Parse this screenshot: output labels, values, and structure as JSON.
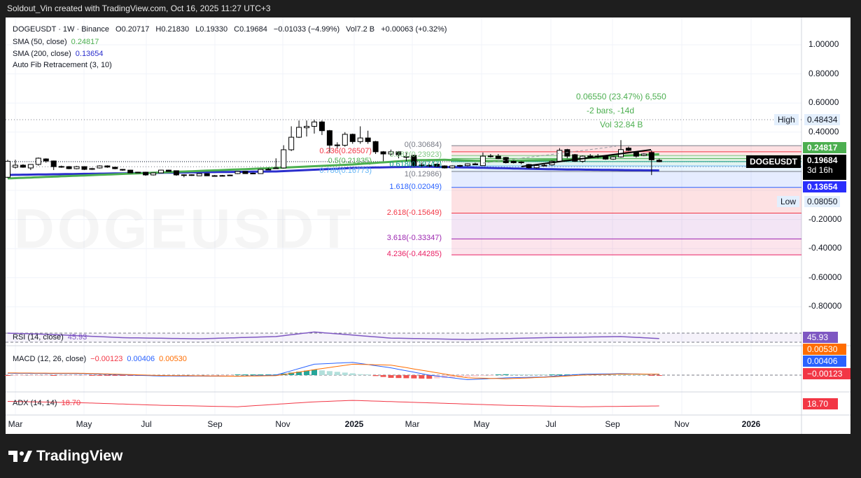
{
  "topbar": {
    "text": "Soldout_Vin created with TradingView.com, Oct 16, 2025 11:27 UTC+3"
  },
  "legend": {
    "symbol_line": "DOGEUSDT · 1W · Binance",
    "open": "O0.20717",
    "high": "H0.21830",
    "low": "L0.19330",
    "close": "C0.19684",
    "change": "−0.01033 (−4.99%)",
    "volume": "Vol7.2 B",
    "vol_change": "+0.00063 (+0.32%)",
    "sma50_label": "SMA (50, close)",
    "sma50_value": "0.24817",
    "sma200_label": "SMA (200, close)",
    "sma200_value": "0.13654",
    "fib_label": "Auto Fib Retracement (3, 10)"
  },
  "watermark": "DOGEUSDT",
  "measure": {
    "line1": "0.06550 (23.47%) 6,550",
    "line2": "-2 bars, -14d",
    "line3": "Vol 32.84 B"
  },
  "price_axis": {
    "ticks": [
      "1.00000",
      "0.80000",
      "0.60000",
      "0.40000",
      "-0.20000",
      "-0.40000",
      "-0.60000",
      "-0.80000"
    ],
    "high_label": "High",
    "high_value": "0.48434",
    "low_label": "Low",
    "low_value": "0.08050",
    "sma50_tag": "0.24817",
    "sma200_tag": "0.13654",
    "symbol_tag": "DOGEUSDT",
    "last_price": "0.19684",
    "countdown": "3d 16h"
  },
  "time_axis": [
    "Mar",
    "May",
    "Jul",
    "Sep",
    "Nov",
    "2025",
    "Mar",
    "May",
    "Jul",
    "Sep",
    "Nov",
    "2026"
  ],
  "fib_levels": [
    {
      "label": "0(0.30684)",
      "level": 0,
      "price": 0.30684,
      "color": "#787b86"
    },
    {
      "label": "0.236(0.26507)",
      "level": 0.236,
      "price": 0.26507,
      "color": "#f23645"
    },
    {
      "label": "0.382(0.23923)",
      "level": 0.382,
      "price": 0.23923,
      "color": "#81c784"
    },
    {
      "label": "0.5(0.21835)",
      "level": 0.5,
      "price": 0.21835,
      "color": "#4caf50"
    },
    {
      "label": "0.618(0.19747)",
      "level": 0.618,
      "price": 0.19747,
      "color": "#089981"
    },
    {
      "label": "0.786(0.16773)",
      "level": 0.786,
      "price": 0.16773,
      "color": "#64b5f6"
    },
    {
      "label": "1(0.12986)",
      "level": 1,
      "price": 0.12986,
      "color": "#787b86"
    },
    {
      "label": "1.618(0.02049)",
      "level": 1.618,
      "price": 0.02049,
      "color": "#2962ff"
    },
    {
      "label": "2.618(-0.15649)",
      "level": 2.618,
      "price": -0.15649,
      "color": "#f23645"
    },
    {
      "label": "3.618(-0.33347)",
      "level": 3.618,
      "price": -0.33347,
      "color": "#9c27b0"
    },
    {
      "label": "4.236(-0.44285)",
      "level": 4.236,
      "price": -0.44285,
      "color": "#e91e63"
    }
  ],
  "indicators": {
    "rsi_label": "RSI (14, close)",
    "rsi_value": "45.93",
    "macd_label": "MACD (12, 26, close)",
    "macd_hist": "−0.00123",
    "macd_line": "0.00406",
    "macd_signal": "0.00530",
    "adx_label": "ADX (14, 14)",
    "adx_value": "18.70"
  },
  "colors": {
    "sma50": "#4caf50",
    "sma200": "#2a2ecd",
    "rsi": "#7e57c2",
    "macd": "#2962ff",
    "signal": "#ff6d00",
    "adx": "#f23645",
    "hist_up": "#26a69a",
    "hist_down": "#ef5350"
  },
  "brand": "TradingView",
  "chart_data": {
    "type": "candlestick",
    "symbol": "DOGEUSDT",
    "interval": "1W",
    "ylim": [
      -0.9,
      1.05
    ],
    "ohlc": [
      [
        0.09,
        0.21,
        0.085,
        0.2
      ],
      [
        0.159,
        0.21,
        0.15,
        0.173
      ],
      [
        0.173,
        0.18,
        0.155,
        0.159
      ],
      [
        0.154,
        0.18,
        0.14,
        0.178
      ],
      [
        0.178,
        0.226,
        0.17,
        0.221
      ],
      [
        0.216,
        0.22,
        0.19,
        0.202
      ],
      [
        0.202,
        0.205,
        0.14,
        0.163
      ],
      [
        0.163,
        0.17,
        0.155,
        0.164
      ],
      [
        0.163,
        0.167,
        0.145,
        0.149
      ],
      [
        0.149,
        0.168,
        0.145,
        0.163
      ],
      [
        0.163,
        0.166,
        0.14,
        0.144
      ],
      [
        0.144,
        0.155,
        0.14,
        0.15
      ],
      [
        0.154,
        0.172,
        0.15,
        0.168
      ],
      [
        0.168,
        0.172,
        0.155,
        0.16
      ],
      [
        0.159,
        0.162,
        0.145,
        0.149
      ],
      [
        0.144,
        0.147,
        0.135,
        0.139
      ],
      [
        0.139,
        0.141,
        0.118,
        0.12
      ],
      [
        0.125,
        0.128,
        0.12,
        0.125
      ],
      [
        0.125,
        0.128,
        0.1,
        0.106
      ],
      [
        0.106,
        0.123,
        0.102,
        0.12
      ],
      [
        0.12,
        0.142,
        0.118,
        0.139
      ],
      [
        0.139,
        0.142,
        0.128,
        0.13
      ],
      [
        0.135,
        0.137,
        0.1,
        0.106
      ],
      [
        0.106,
        0.11,
        0.09,
        0.107
      ],
      [
        0.107,
        0.11,
        0.1,
        0.106
      ],
      [
        0.1,
        0.117,
        0.098,
        0.115
      ],
      [
        0.115,
        0.117,
        0.098,
        0.1
      ],
      [
        0.1,
        0.105,
        0.095,
        0.101
      ],
      [
        0.101,
        0.106,
        0.098,
        0.102
      ],
      [
        0.102,
        0.108,
        0.1,
        0.105
      ],
      [
        0.115,
        0.132,
        0.112,
        0.13
      ],
      [
        0.13,
        0.132,
        0.113,
        0.115
      ],
      [
        0.117,
        0.122,
        0.112,
        0.118
      ],
      [
        0.115,
        0.146,
        0.113,
        0.144
      ],
      [
        0.144,
        0.155,
        0.14,
        0.145
      ],
      [
        0.15,
        0.22,
        0.148,
        0.154
      ],
      [
        0.154,
        0.31,
        0.15,
        0.279
      ],
      [
        0.279,
        0.44,
        0.27,
        0.365
      ],
      [
        0.365,
        0.48,
        0.36,
        0.433
      ],
      [
        0.43,
        0.48,
        0.37,
        0.44
      ],
      [
        0.44,
        0.485,
        0.39,
        0.47
      ],
      [
        0.47,
        0.48,
        0.38,
        0.41
      ],
      [
        0.41,
        0.415,
        0.26,
        0.31
      ],
      [
        0.31,
        0.33,
        0.29,
        0.312
      ],
      [
        0.31,
        0.4,
        0.3,
        0.385
      ],
      [
        0.385,
        0.39,
        0.32,
        0.335
      ],
      [
        0.335,
        0.44,
        0.32,
        0.36
      ],
      [
        0.36,
        0.41,
        0.32,
        0.335
      ],
      [
        0.335,
        0.34,
        0.25,
        0.265
      ],
      [
        0.265,
        0.27,
        0.2,
        0.25
      ],
      [
        0.25,
        0.28,
        0.24,
        0.265
      ],
      [
        0.265,
        0.27,
        0.22,
        0.245
      ],
      [
        0.23,
        0.26,
        0.2,
        0.232
      ],
      [
        0.24,
        0.245,
        0.16,
        0.17
      ],
      [
        0.173,
        0.19,
        0.16,
        0.174
      ],
      [
        0.172,
        0.18,
        0.16,
        0.171
      ],
      [
        0.18,
        0.185,
        0.16,
        0.165
      ],
      [
        0.168,
        0.172,
        0.15,
        0.154
      ],
      [
        0.155,
        0.172,
        0.15,
        0.168
      ],
      [
        0.168,
        0.175,
        0.16,
        0.171
      ],
      [
        0.17,
        0.185,
        0.165,
        0.182
      ],
      [
        0.182,
        0.19,
        0.175,
        0.176
      ],
      [
        0.17,
        0.26,
        0.168,
        0.235
      ],
      [
        0.235,
        0.25,
        0.225,
        0.236
      ],
      [
        0.235,
        0.25,
        0.215,
        0.218
      ],
      [
        0.226,
        0.23,
        0.185,
        0.19
      ],
      [
        0.2,
        0.205,
        0.185,
        0.19
      ],
      [
        0.195,
        0.2,
        0.18,
        0.19
      ],
      [
        0.178,
        0.182,
        0.15,
        0.155
      ],
      [
        0.155,
        0.175,
        0.15,
        0.17
      ],
      [
        0.17,
        0.18,
        0.165,
        0.172
      ],
      [
        0.175,
        0.205,
        0.17,
        0.2
      ],
      [
        0.2,
        0.29,
        0.195,
        0.275
      ],
      [
        0.28,
        0.285,
        0.22,
        0.235
      ],
      [
        0.245,
        0.25,
        0.195,
        0.2
      ],
      [
        0.2,
        0.24,
        0.19,
        0.235
      ],
      [
        0.235,
        0.25,
        0.22,
        0.236
      ],
      [
        0.235,
        0.25,
        0.22,
        0.234
      ],
      [
        0.235,
        0.24,
        0.21,
        0.215
      ],
      [
        0.215,
        0.235,
        0.21,
        0.23
      ],
      [
        0.23,
        0.345,
        0.225,
        0.28
      ],
      [
        0.29,
        0.3,
        0.27,
        0.275
      ],
      [
        0.26,
        0.265,
        0.225,
        0.235
      ],
      [
        0.24,
        0.255,
        0.235,
        0.25
      ],
      [
        0.26,
        0.275,
        0.105,
        0.21
      ],
      [
        0.20717,
        0.2183,
        0.1933,
        0.19684
      ]
    ],
    "sma50": [
      [
        0,
        0.082
      ],
      [
        35,
        0.154
      ],
      [
        45,
        0.178
      ],
      [
        53,
        0.207
      ],
      [
        57,
        0.21
      ],
      [
        63,
        0.2
      ],
      [
        72,
        0.21
      ],
      [
        81,
        0.24
      ],
      [
        85,
        0.24817
      ]
    ],
    "sma200": [
      [
        0,
        0.106
      ],
      [
        26,
        0.125
      ],
      [
        35,
        0.13
      ],
      [
        45,
        0.154
      ],
      [
        54,
        0.163
      ],
      [
        63,
        0.154
      ],
      [
        72,
        0.144
      ],
      [
        85,
        0.13654
      ]
    ],
    "rsi": [
      [
        0,
        70
      ],
      [
        5,
        65
      ],
      [
        15,
        50
      ],
      [
        25,
        45
      ],
      [
        35,
        55
      ],
      [
        40,
        75
      ],
      [
        50,
        48
      ],
      [
        60,
        42
      ],
      [
        70,
        50
      ],
      [
        80,
        55
      ],
      [
        85,
        45.93
      ]
    ],
    "macd": [
      [
        0,
        0.01
      ],
      [
        10,
        0.008
      ],
      [
        20,
        -0.005
      ],
      [
        30,
        -0.006
      ],
      [
        35,
        0.0
      ],
      [
        40,
        0.06
      ],
      [
        45,
        0.07
      ],
      [
        50,
        0.04
      ],
      [
        55,
        0.0
      ],
      [
        60,
        -0.025
      ],
      [
        65,
        -0.015
      ],
      [
        70,
        -0.01
      ],
      [
        75,
        0.005
      ],
      [
        80,
        0.008
      ],
      [
        85,
        0.00406
      ]
    ],
    "signal": [
      [
        0,
        0.012
      ],
      [
        10,
        0.01
      ],
      [
        20,
        -0.002
      ],
      [
        30,
        -0.006
      ],
      [
        35,
        -0.003
      ],
      [
        40,
        0.03
      ],
      [
        45,
        0.06
      ],
      [
        50,
        0.055
      ],
      [
        55,
        0.02
      ],
      [
        60,
        -0.015
      ],
      [
        65,
        -0.02
      ],
      [
        70,
        -0.012
      ],
      [
        75,
        0.0
      ],
      [
        80,
        0.006
      ],
      [
        85,
        0.0053
      ]
    ],
    "adx": [
      [
        0,
        28
      ],
      [
        10,
        25
      ],
      [
        20,
        20
      ],
      [
        30,
        17
      ],
      [
        40,
        27
      ],
      [
        45,
        30
      ],
      [
        55,
        25
      ],
      [
        65,
        20
      ],
      [
        75,
        17
      ],
      [
        85,
        18.7
      ]
    ]
  }
}
